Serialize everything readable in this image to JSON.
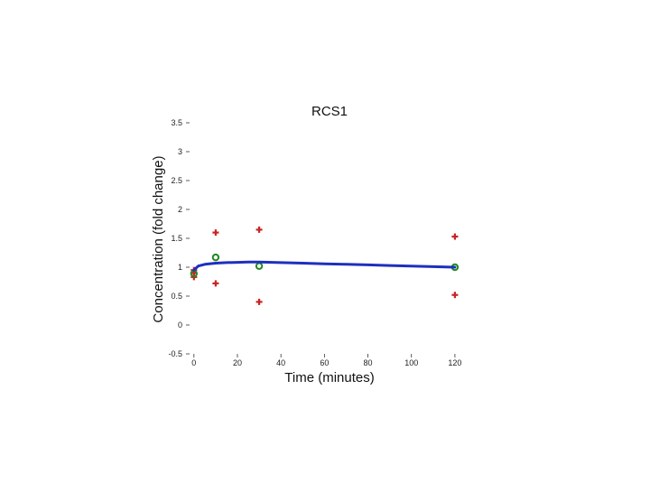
{
  "chart_data": {
    "type": "scatter",
    "title": "RCS1",
    "xlabel": "Time (minutes)",
    "ylabel": "Concentration (fold change)",
    "xlim": [
      -2,
      130
    ],
    "ylim": [
      -0.5,
      3.5
    ],
    "xticks": [
      0,
      20,
      40,
      60,
      80,
      100,
      120
    ],
    "xtick_labels": [
      "0",
      "20",
      "40",
      "60",
      "80",
      "100",
      "120"
    ],
    "yticks": [
      -0.5,
      0,
      0.5,
      1,
      1.5,
      2,
      2.5,
      3,
      3.5
    ],
    "ytick_labels": [
      "-0.5",
      "0",
      "0.5",
      "1",
      "1.5",
      "2",
      "2.5",
      "3",
      "3.5"
    ],
    "grid": false,
    "series": [
      {
        "marker": "plus",
        "color": "#cc2222",
        "x": [
          0,
          0,
          0,
          10,
          10,
          30,
          30,
          120,
          120
        ],
        "y": [
          0.83,
          0.9,
          0.95,
          0.72,
          1.6,
          0.4,
          1.65,
          0.52,
          1.53
        ]
      },
      {
        "marker": "open-circle",
        "color": "#228822",
        "x": [
          0,
          10,
          30,
          120
        ],
        "y": [
          0.89,
          1.17,
          1.02,
          1.0
        ]
      },
      {
        "marker": "line",
        "color": "#1f2fbf",
        "x": [
          0,
          2,
          5,
          10,
          15,
          20,
          25,
          30,
          40,
          50,
          60,
          70,
          80,
          90,
          100,
          110,
          120
        ],
        "y": [
          0.95,
          1.02,
          1.05,
          1.07,
          1.08,
          1.085,
          1.09,
          1.09,
          1.08,
          1.07,
          1.06,
          1.05,
          1.04,
          1.03,
          1.02,
          1.01,
          1.0
        ]
      }
    ]
  }
}
